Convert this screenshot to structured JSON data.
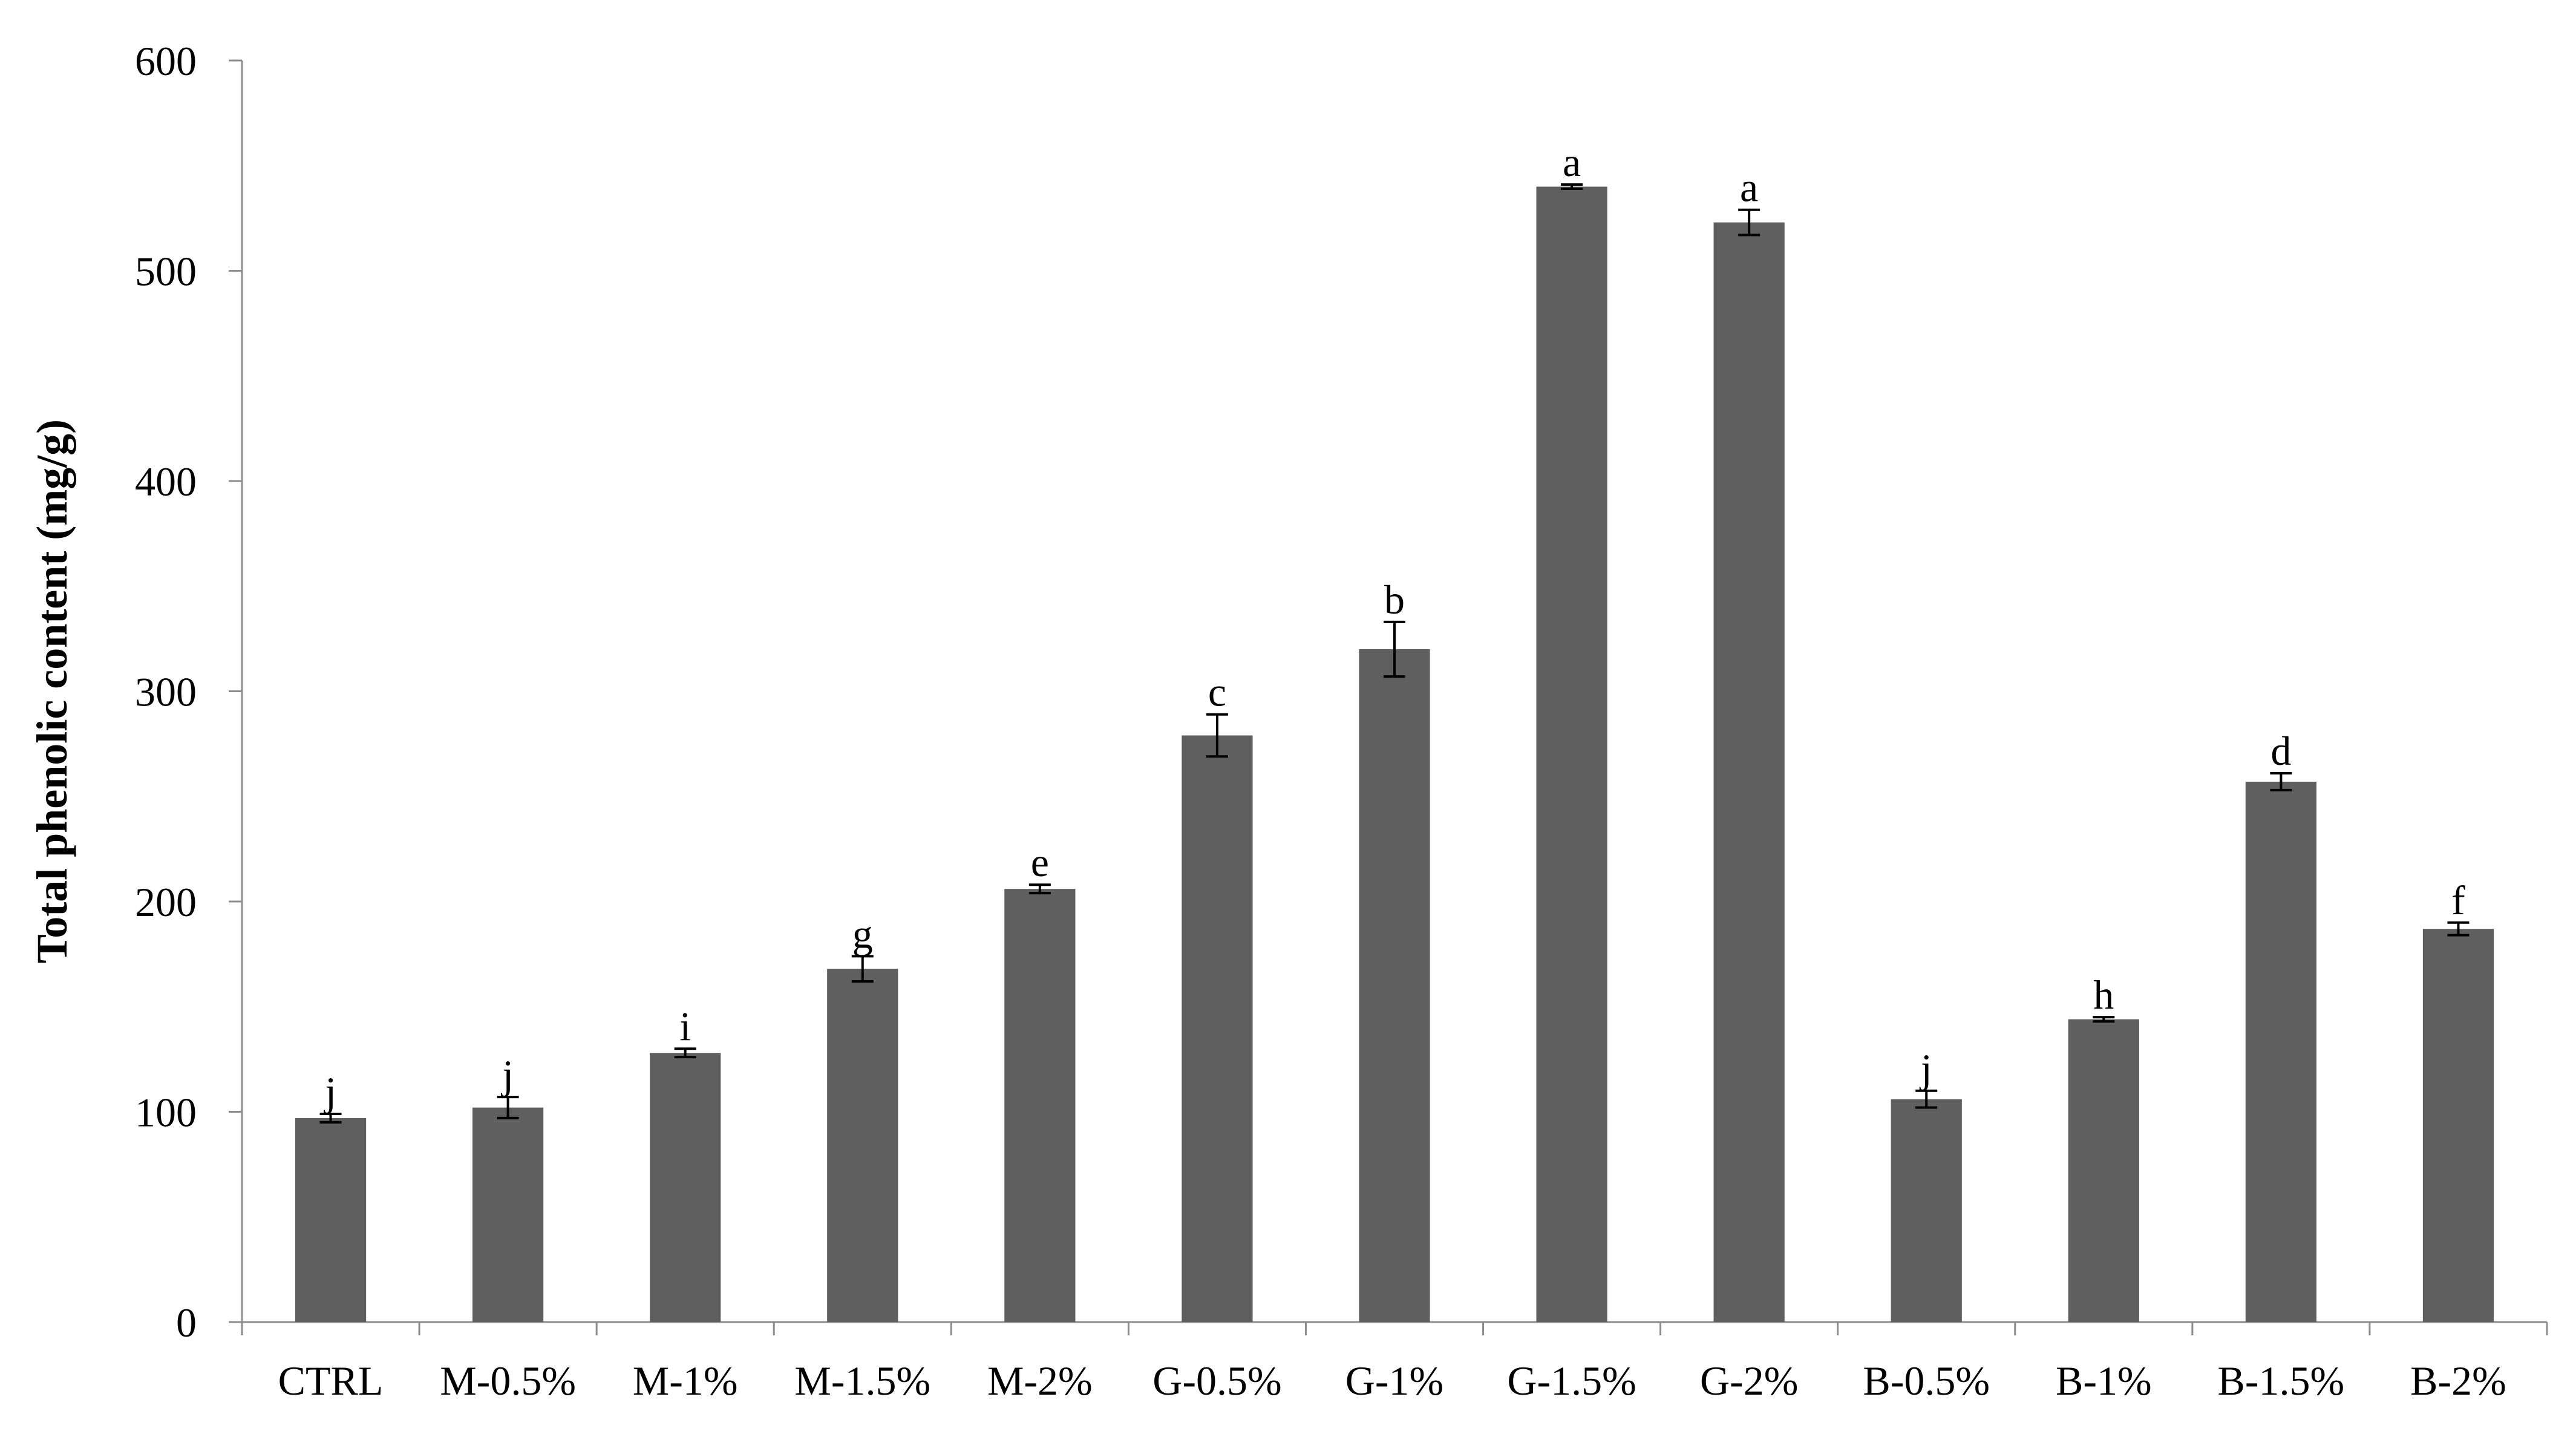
{
  "chart_data": {
    "type": "bar",
    "title": "",
    "xlabel": "",
    "ylabel": "Total phenolic content (mg/g)",
    "ylim": [
      0,
      600
    ],
    "yticks": [
      0,
      100,
      200,
      300,
      400,
      500,
      600
    ],
    "grid": false,
    "legend": "none",
    "bar_color": "#5f5f5f",
    "categories": [
      "CTRL",
      "M-0.5%",
      "M-1%",
      "M-1.5%",
      "M-2%",
      "G-0.5%",
      "G-1%",
      "G-1.5%",
      "G-2%",
      "B-0.5%",
      "B-1%",
      "B-1.5%",
      "B-2%"
    ],
    "values": [
      97,
      102,
      128,
      168,
      206,
      279,
      320,
      540,
      523,
      106,
      144,
      257,
      187
    ],
    "errors": [
      2,
      5,
      2,
      6,
      2,
      10,
      13,
      1,
      6,
      4,
      1,
      4,
      3
    ],
    "significance": [
      "j",
      "j",
      "i",
      "g",
      "e",
      "c",
      "b",
      "a",
      "a",
      "j",
      "h",
      "d",
      "f"
    ]
  }
}
